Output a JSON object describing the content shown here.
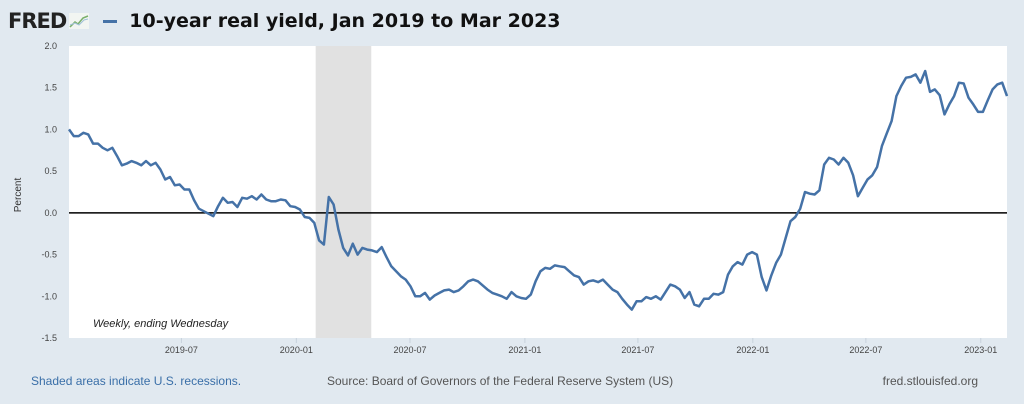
{
  "header": {
    "logo": "FRED",
    "title": "10-year real yield, Jan 2019 to Mar 2023"
  },
  "footer": {
    "recession_note": "Shaded areas indicate U.S. recessions.",
    "source": "Source: Board of Governors of the Federal Reserve System (US)",
    "site": "fred.stlouisfed.org"
  },
  "colors": {
    "line": "#4572a7",
    "background": "#e1e9f0",
    "recession": "#e1e1e1"
  },
  "chart_data": {
    "type": "line",
    "title": "10-year real yield, Jan 2019 to Mar 2023",
    "ylabel": "Percent",
    "xlabel": "",
    "annotation": "Weekly, ending Wednesday",
    "ylim": [
      -1.5,
      2.0
    ],
    "yticks": [
      "2.0",
      "1.5",
      "1.0",
      "0.5",
      "0.0",
      "-0.5",
      "-1.0",
      "-1.5"
    ],
    "ytick_values": [
      2.0,
      1.5,
      1.0,
      0.5,
      0.0,
      -0.5,
      -1.0,
      -1.5
    ],
    "xlim": [
      "2019-01-02",
      "2023-02-12"
    ],
    "xticks": [
      "2019-07",
      "2020-01",
      "2020-07",
      "2021-01",
      "2021-07",
      "2022-01",
      "2022-07",
      "2023-01"
    ],
    "recessions": [
      [
        "2020-02-01",
        "2020-04-30"
      ]
    ],
    "grid": false,
    "series": [
      {
        "name": "10-year real yield",
        "start": "2019-01-02",
        "end": "2023-02-12",
        "frequency": "weekly",
        "values": [
          1.0,
          0.92,
          0.92,
          0.96,
          0.94,
          0.83,
          0.83,
          0.78,
          0.75,
          0.78,
          0.68,
          0.57,
          0.59,
          0.62,
          0.6,
          0.57,
          0.62,
          0.57,
          0.6,
          0.52,
          0.4,
          0.43,
          0.33,
          0.34,
          0.28,
          0.28,
          0.15,
          0.05,
          0.02,
          -0.01,
          -0.04,
          0.08,
          0.18,
          0.12,
          0.13,
          0.07,
          0.18,
          0.17,
          0.2,
          0.16,
          0.22,
          0.16,
          0.14,
          0.14,
          0.16,
          0.15,
          0.08,
          0.07,
          0.04,
          -0.05,
          -0.06,
          -0.12,
          -0.33,
          -0.38,
          0.19,
          0.1,
          -0.2,
          -0.42,
          -0.51,
          -0.37,
          -0.5,
          -0.42,
          -0.44,
          -0.45,
          -0.47,
          -0.41,
          -0.53,
          -0.64,
          -0.7,
          -0.76,
          -0.8,
          -0.88,
          -1.0,
          -1.0,
          -0.96,
          -1.04,
          -0.99,
          -0.96,
          -0.93,
          -0.92,
          -0.95,
          -0.93,
          -0.88,
          -0.82,
          -0.8,
          -0.82,
          -0.87,
          -0.92,
          -0.96,
          -0.98,
          -1.0,
          -1.03,
          -0.95,
          -1.0,
          -1.02,
          -1.03,
          -0.98,
          -0.82,
          -0.7,
          -0.66,
          -0.67,
          -0.63,
          -0.64,
          -0.65,
          -0.7,
          -0.75,
          -0.77,
          -0.86,
          -0.82,
          -0.81,
          -0.83,
          -0.8,
          -0.86,
          -0.92,
          -0.95,
          -1.03,
          -1.1,
          -1.16,
          -1.06,
          -1.06,
          -1.01,
          -1.03,
          -1.0,
          -1.04,
          -0.95,
          -0.86,
          -0.88,
          -0.92,
          -1.02,
          -0.95,
          -1.1,
          -1.12,
          -1.03,
          -1.03,
          -0.97,
          -0.98,
          -0.95,
          -0.74,
          -0.64,
          -0.59,
          -0.62,
          -0.5,
          -0.47,
          -0.5,
          -0.77,
          -0.93,
          -0.75,
          -0.6,
          -0.5,
          -0.3,
          -0.1,
          -0.05,
          0.05,
          0.25,
          0.23,
          0.22,
          0.27,
          0.58,
          0.66,
          0.64,
          0.58,
          0.66,
          0.6,
          0.45,
          0.2,
          0.3,
          0.4,
          0.45,
          0.55,
          0.8,
          0.95,
          1.1,
          1.4,
          1.52,
          1.62,
          1.63,
          1.66,
          1.56,
          1.7,
          1.45,
          1.48,
          1.41,
          1.18,
          1.3,
          1.4,
          1.56,
          1.55,
          1.38,
          1.3,
          1.21,
          1.21,
          1.35,
          1.48,
          1.54,
          1.56,
          1.4
        ]
      }
    ]
  }
}
